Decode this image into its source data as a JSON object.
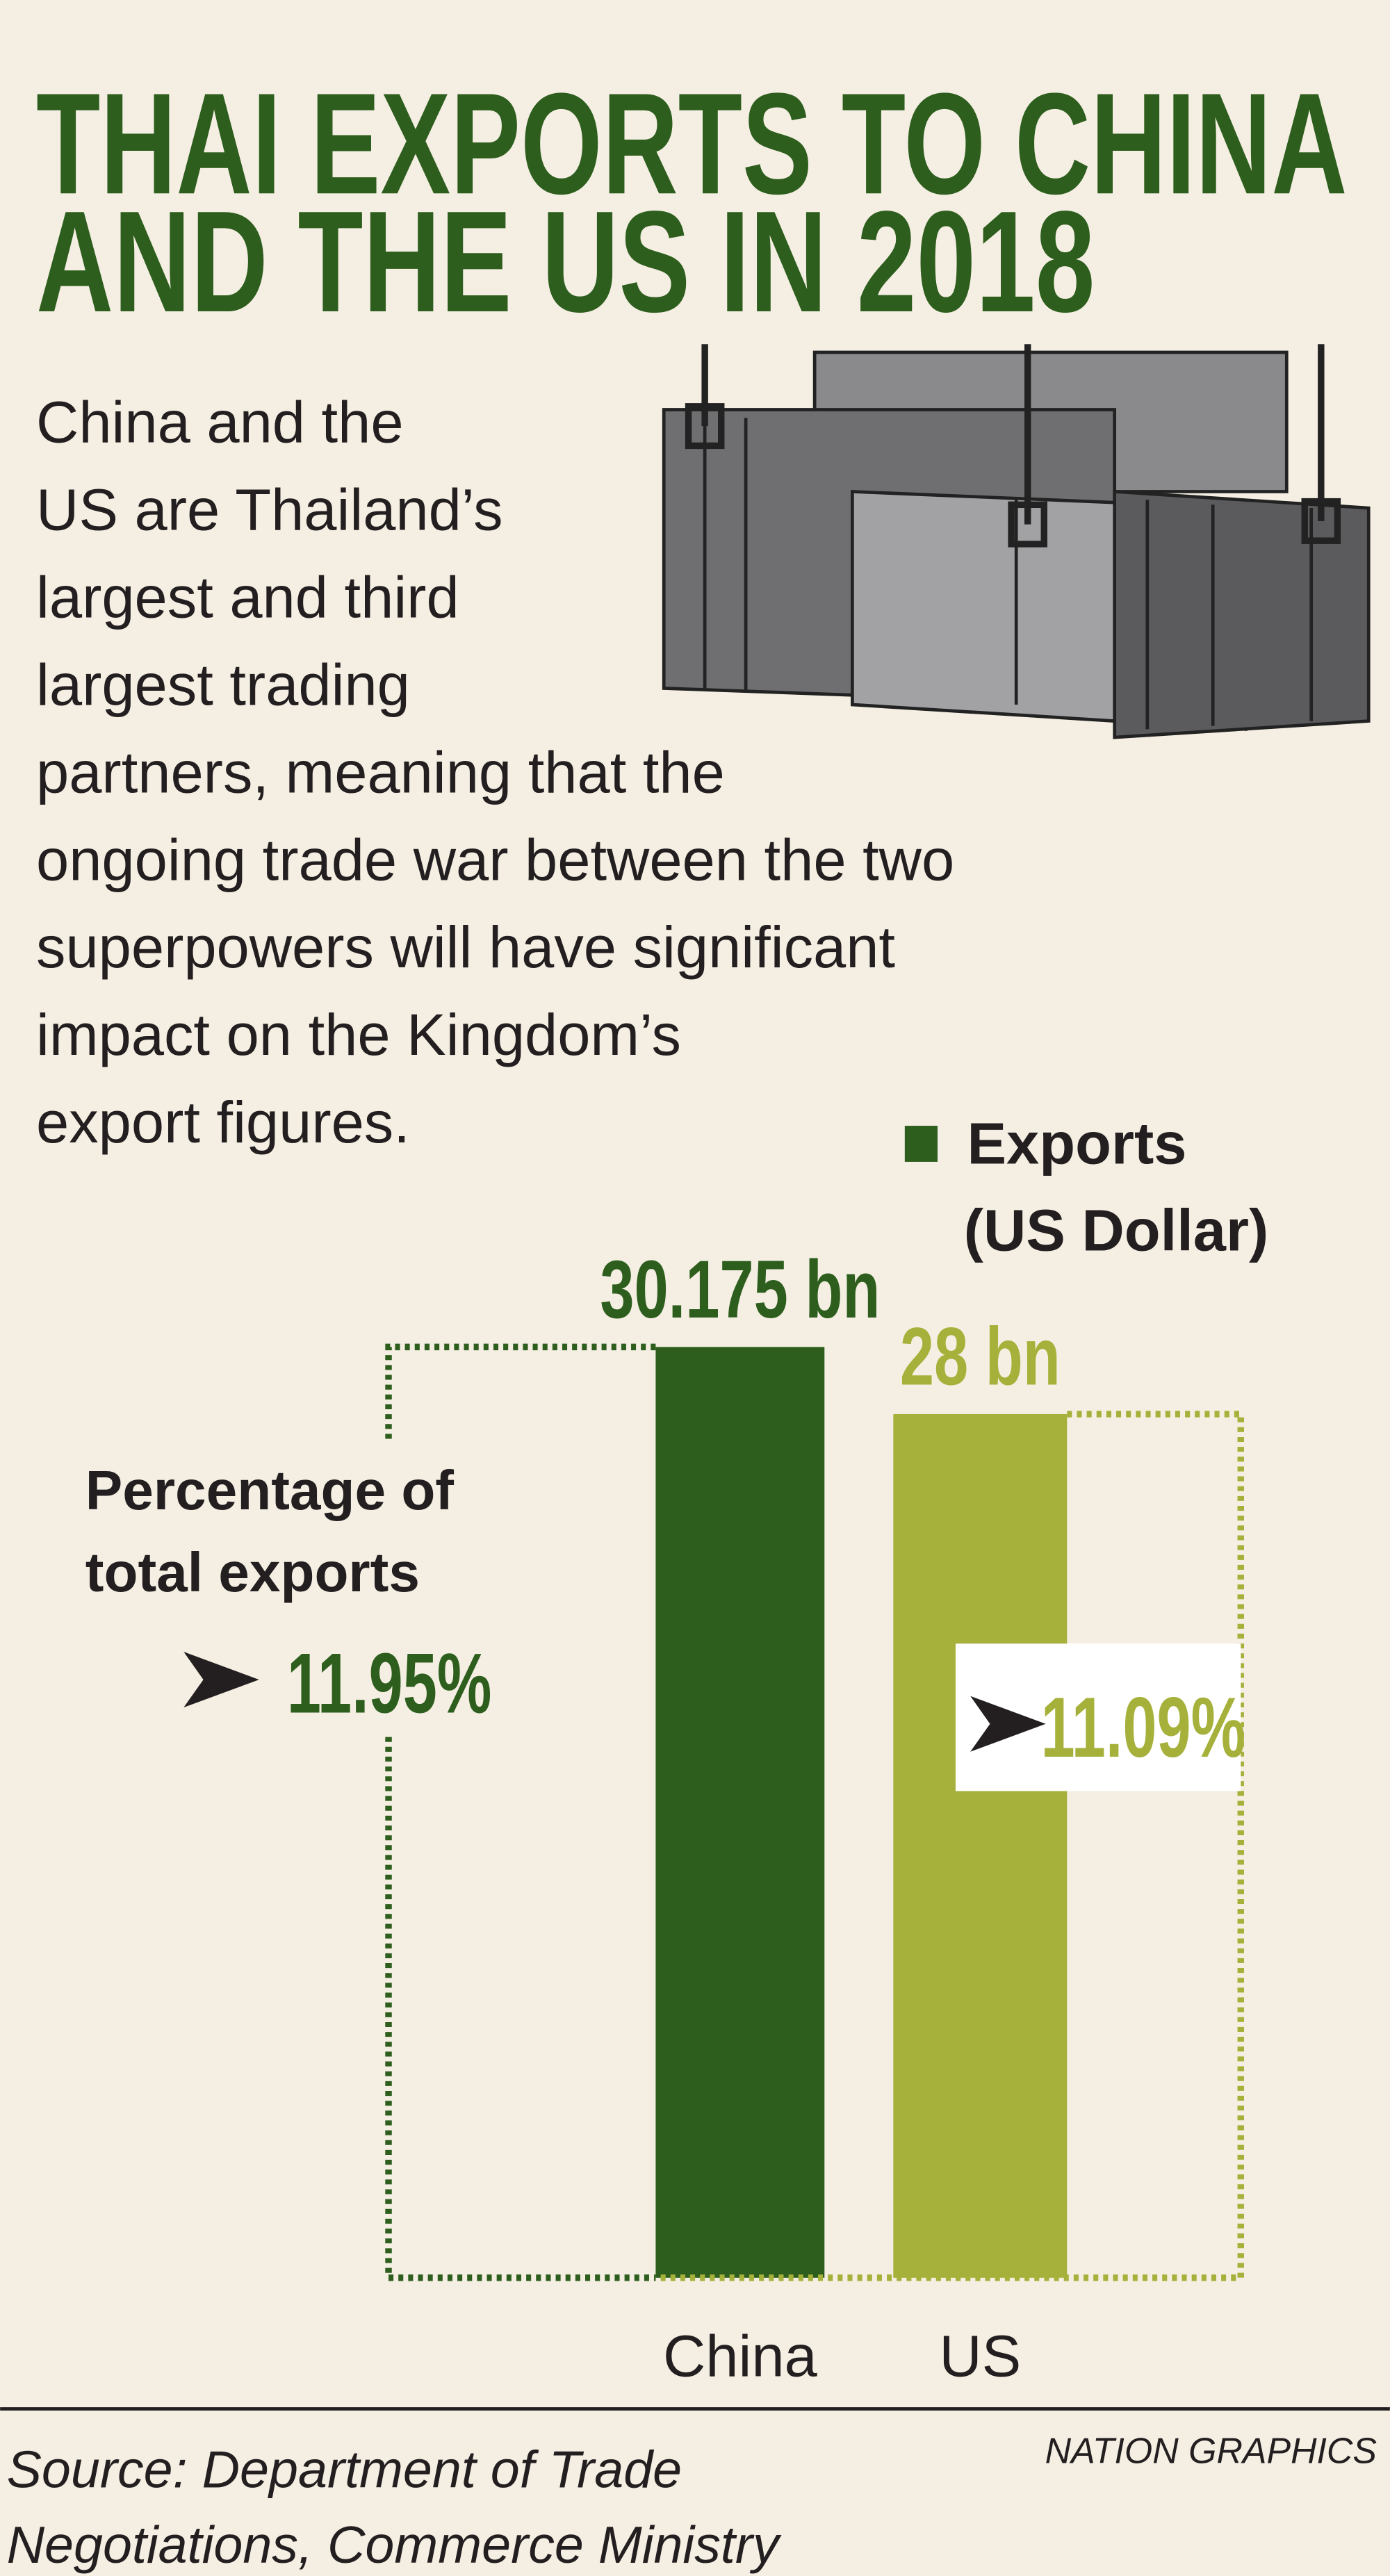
{
  "chart_data": {
    "type": "bar",
    "title": [
      "THAI EXPORTS TO CHINA",
      "AND THE US IN 2018"
    ],
    "description": [
      "China and the",
      "US are Thailand’s",
      "largest and third",
      "largest trading",
      "partners, meaning that the",
      "ongoing trade war between the two",
      "superpowers will have significant",
      "impact on the Kingdom’s",
      "export figures."
    ],
    "categories": [
      "China",
      "US"
    ],
    "series": [
      {
        "name": "Exports",
        "color": "#2d5e1d",
        "colors": [
          "#2d5e1d",
          "#a5b13a"
        ],
        "values": [
          30.175,
          28
        ],
        "value_labels": [
          "30.175 bn",
          "28 bn"
        ]
      }
    ],
    "y_label": "(US Dollar)",
    "share": {
      "label": "Percentage of total exports",
      "values": [
        11.95,
        11.09
      ],
      "value_labels": [
        "11.95%",
        "11.09%"
      ]
    },
    "source": [
      "Source: Department of Trade",
      "Negotiations, Commerce Ministry"
    ],
    "credit": "NATION GRAPHICS"
  }
}
